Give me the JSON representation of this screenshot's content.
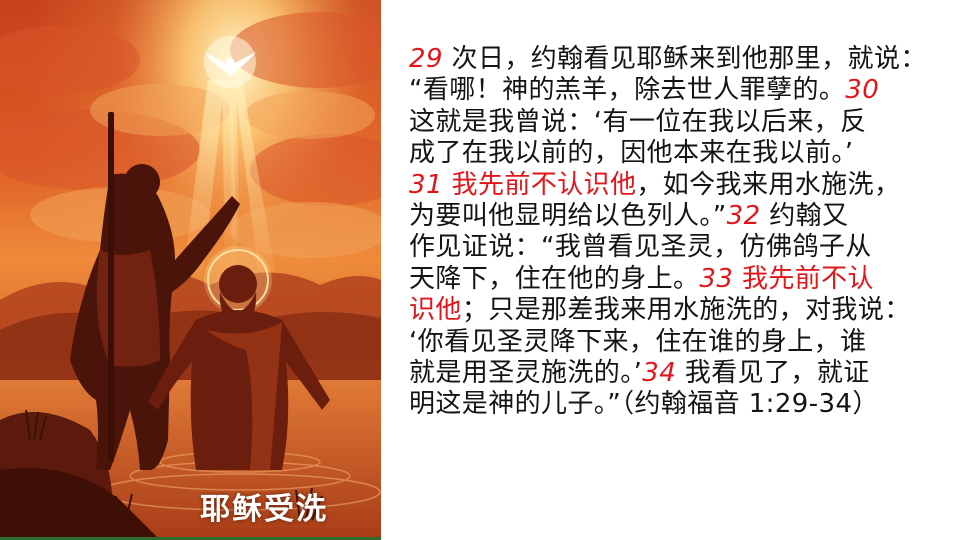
{
  "caption": "耶稣受洗",
  "colors": {
    "verse_number": "#e3151a",
    "body_text": "#141414",
    "background": "#ffffff",
    "illustration_sky": "#dd5b23",
    "illustration_light": "#fff1b8"
  },
  "icons": [
    "dove-icon",
    "halo-icon",
    "staff-icon"
  ],
  "scripture": {
    "line1": {
      "v29": "29",
      "t": " 次日，约翰看见耶稣来到他那里，就说："
    },
    "line2": {
      "t": "“看哪！神的羔羊，除去世人罪孽的。",
      "v30": "30"
    },
    "line3": {
      "t": "这就是我曾说：‘有一位在我以后来，反"
    },
    "line4": {
      "t": "成了在我以前的，因他本来在我以前。’"
    },
    "line5": {
      "v31": "31",
      "red": " 我先前不认识他",
      "t": "，如今我来用水施洗，"
    },
    "line6": {
      "t": "为要叫他显明给以色列人。”",
      "v32": "32",
      "t2": " 约翰又"
    },
    "line7": {
      "t": "作见证说：“我曾看见圣灵，仿佛鸽子从"
    },
    "line8": {
      "t": "天降下，住在他的身上。",
      "v33": "33",
      "red": " 我先前不认"
    },
    "line9": {
      "red": "识他",
      "t": "；只是那差我来用水施洗的，对我说："
    },
    "line10": {
      "t": "‘你看见圣灵降下来，住在谁的身上，谁"
    },
    "line11": {
      "t": "就是用圣灵施洗的。’",
      "v34": "34",
      "t2": " 我看见了，就证"
    },
    "line12": {
      "t": "明这是神的儿子。”（约翰福音 1:29-34）"
    }
  }
}
